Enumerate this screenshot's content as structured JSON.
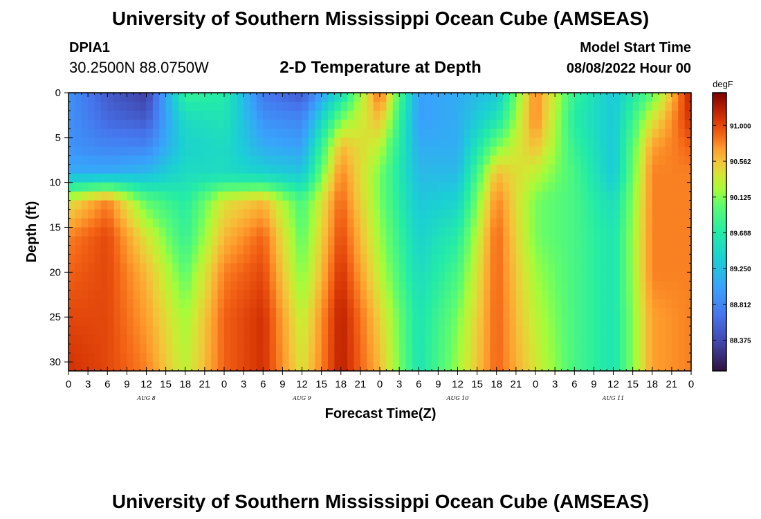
{
  "chart_data": {
    "type": "heatmap",
    "title": "University of Southern Mississippi Ocean Cube (AMSEAS)",
    "station": "DPIA1",
    "location": "30.2500N  88.0750W",
    "subtitle": "2-D Temperature at Depth",
    "model_start_label": "Model Start Time",
    "model_start": "08/08/2022 Hour 00",
    "xlabel": "Forecast Time(Z)",
    "ylabel": "Depth (ft)",
    "colorbar_unit": "degF",
    "xlim": [
      0,
      96
    ],
    "ylim": [
      0,
      31
    ],
    "x_ticks": [
      {
        "hour": 0,
        "label": "0"
      },
      {
        "hour": 3,
        "label": "3"
      },
      {
        "hour": 6,
        "label": "6"
      },
      {
        "hour": 9,
        "label": "9"
      },
      {
        "hour": 12,
        "label": "12"
      },
      {
        "hour": 15,
        "label": "15"
      },
      {
        "hour": 18,
        "label": "18"
      },
      {
        "hour": 21,
        "label": "21"
      },
      {
        "hour": 24,
        "label": "0"
      },
      {
        "hour": 27,
        "label": "3"
      },
      {
        "hour": 30,
        "label": "6"
      },
      {
        "hour": 33,
        "label": "9"
      },
      {
        "hour": 36,
        "label": "12"
      },
      {
        "hour": 39,
        "label": "15"
      },
      {
        "hour": 42,
        "label": "18"
      },
      {
        "hour": 45,
        "label": "21"
      },
      {
        "hour": 48,
        "label": "0"
      },
      {
        "hour": 51,
        "label": "3"
      },
      {
        "hour": 54,
        "label": "6"
      },
      {
        "hour": 57,
        "label": "9"
      },
      {
        "hour": 60,
        "label": "12"
      },
      {
        "hour": 63,
        "label": "15"
      },
      {
        "hour": 66,
        "label": "18"
      },
      {
        "hour": 69,
        "label": "21"
      },
      {
        "hour": 72,
        "label": "0"
      },
      {
        "hour": 75,
        "label": "3"
      },
      {
        "hour": 78,
        "label": "6"
      },
      {
        "hour": 81,
        "label": "9"
      },
      {
        "hour": 84,
        "label": "12"
      },
      {
        "hour": 87,
        "label": "15"
      },
      {
        "hour": 90,
        "label": "18"
      },
      {
        "hour": 93,
        "label": "21"
      },
      {
        "hour": 96,
        "label": "0"
      }
    ],
    "day_labels": [
      {
        "hour": 12,
        "label": "AUG 8"
      },
      {
        "hour": 36,
        "label": "AUG 9"
      },
      {
        "hour": 60,
        "label": "AUG 10"
      },
      {
        "hour": 84,
        "label": "AUG 11"
      }
    ],
    "y_ticks": [
      0,
      5,
      10,
      15,
      20,
      25,
      30
    ],
    "colorbar_ticks": [
      "91.000",
      "90.562",
      "90.125",
      "89.688",
      "89.250",
      "88.812",
      "88.375"
    ],
    "colorbar_values": [
      91.0,
      90.562,
      90.125,
      89.688,
      89.25,
      88.812,
      88.375
    ],
    "value_range": [
      88.0,
      91.4
    ],
    "grid": {
      "hours": [
        0,
        6,
        12,
        18,
        24,
        30,
        36,
        42,
        48,
        54,
        60,
        66,
        72,
        78,
        84,
        90,
        96
      ],
      "depths": [
        0,
        3,
        6,
        9,
        12,
        16,
        20,
        25,
        31
      ],
      "values": [
        [
          88.9,
          88.5,
          88.3,
          89.8,
          89.7,
          88.7,
          88.5,
          89.5,
          90.9,
          89.0,
          89.1,
          89.3,
          90.8,
          89.8,
          89.3,
          90.0,
          91.2
        ],
        [
          88.9,
          88.6,
          88.5,
          89.5,
          89.6,
          88.9,
          88.8,
          90.1,
          90.6,
          89.0,
          89.1,
          89.6,
          90.8,
          89.7,
          89.3,
          90.4,
          91.1
        ],
        [
          88.9,
          88.8,
          88.8,
          89.4,
          89.5,
          89.1,
          89.0,
          90.6,
          90.3,
          89.1,
          89.1,
          90.1,
          90.6,
          89.8,
          89.3,
          90.7,
          90.9
        ],
        [
          89.1,
          89.1,
          89.2,
          89.5,
          89.5,
          89.4,
          89.3,
          90.8,
          90.1,
          89.2,
          89.2,
          90.6,
          90.3,
          89.9,
          89.3,
          90.8,
          90.8
        ],
        [
          90.4,
          90.8,
          90.0,
          89.7,
          90.4,
          90.6,
          89.9,
          90.9,
          90.1,
          89.3,
          89.4,
          90.8,
          90.1,
          89.9,
          89.5,
          90.8,
          90.8
        ],
        [
          90.8,
          91.0,
          90.4,
          89.8,
          90.6,
          90.9,
          90.0,
          91.0,
          90.2,
          89.4,
          89.7,
          90.9,
          90.1,
          89.9,
          89.6,
          90.8,
          90.8
        ],
        [
          90.9,
          91.0,
          90.6,
          90.0,
          90.8,
          91.0,
          90.1,
          91.1,
          90.3,
          89.5,
          89.9,
          90.9,
          90.2,
          89.9,
          89.6,
          90.8,
          90.8
        ],
        [
          91.0,
          91.0,
          90.7,
          90.2,
          90.9,
          91.1,
          90.3,
          91.2,
          90.5,
          89.6,
          90.1,
          90.9,
          90.3,
          89.9,
          89.6,
          90.7,
          90.8
        ],
        [
          91.1,
          91.0,
          90.8,
          90.3,
          90.9,
          91.1,
          90.4,
          91.2,
          90.6,
          89.6,
          90.2,
          90.9,
          90.4,
          89.9,
          89.6,
          90.7,
          90.8
        ]
      ]
    }
  }
}
